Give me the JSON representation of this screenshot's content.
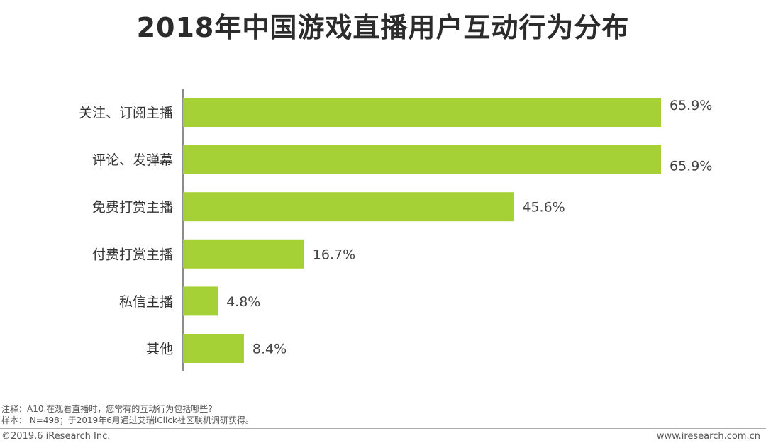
{
  "chart_data": {
    "type": "bar",
    "orientation": "horizontal",
    "title": "2018年中国游戏直播用户互动行为分布",
    "categories": [
      "关注、订阅主播",
      "评论、发弹幕",
      "免费打赏主播",
      "付费打赏主播",
      "私信主播",
      "其他"
    ],
    "values": [
      65.9,
      65.9,
      45.6,
      16.7,
      4.8,
      8.4
    ],
    "value_labels": [
      "65.9%",
      "65.9%",
      "45.6%",
      "16.7%",
      "4.8%",
      "8.4%"
    ],
    "unit": "%",
    "xlim": [
      0,
      70
    ],
    "bar_color": "#a6d136",
    "axis_color": "#666666",
    "grid": false
  },
  "notes": {
    "note1": "注释：A10.在观看直播时，您常有的互动行为包括哪些?",
    "note2": "样本： N=498；于2019年6月通过艾瑞iClick社区联机调研获得。"
  },
  "footer": {
    "copyright": "©2019.6 iResearch Inc.",
    "website": "www.iresearch.com.cn"
  }
}
